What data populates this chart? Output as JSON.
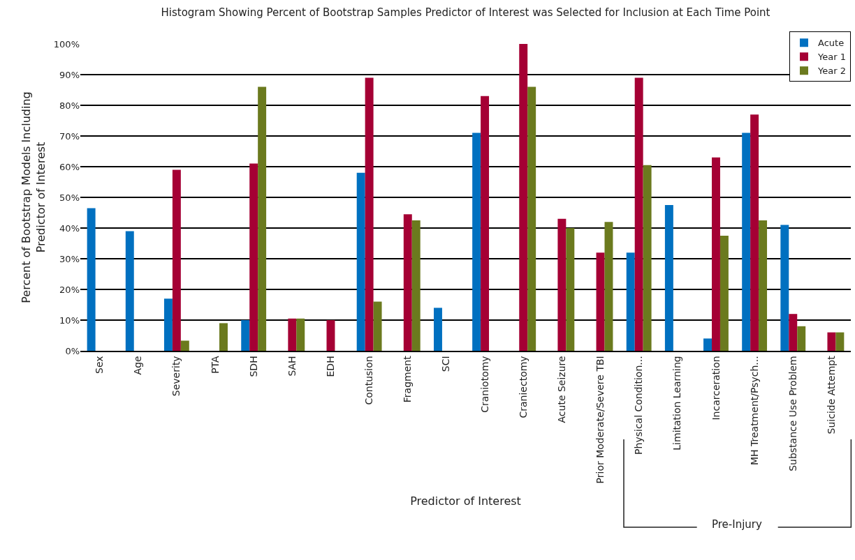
{
  "chart_data": {
    "type": "bar",
    "title": "Histogram Showing Percent of Bootstrap Samples Predictor of Interest was Selected for Inclusion at Each Time Point",
    "xlabel": "Predictor of Interest",
    "ylabel": "Percent of Bootstrap Models Including\nPredictor of Interest",
    "categories": [
      "Sex",
      "Age",
      "Severity",
      "PTA",
      "SDH",
      "SAH",
      "EDH",
      "Contusion",
      "Fragment",
      "SCI",
      "Craniotomy",
      "Craniectomy",
      "Acute Seizure",
      "Prior Moderate/Severe TBI",
      "Physical Condition...",
      "Limitation Learning",
      "Incarceration",
      "MH Treatment/Psych...",
      "Substance Use Problem",
      "Suicide Attempt"
    ],
    "series": [
      {
        "name": "Acute",
        "color": "#0070c0",
        "values": [
          46.5,
          39,
          17,
          null,
          10,
          null,
          null,
          58,
          null,
          14,
          71,
          null,
          null,
          null,
          32,
          47.5,
          4,
          71,
          41,
          null
        ]
      },
      {
        "name": "Year 1",
        "color": "#a50034",
        "values": [
          null,
          null,
          59,
          null,
          61,
          10.5,
          10,
          89,
          44.5,
          null,
          83,
          100,
          43,
          32,
          89,
          null,
          63,
          77,
          12,
          6
        ]
      },
      {
        "name": "Year 2",
        "color": "#6b7a1e",
        "values": [
          null,
          null,
          3.3,
          9,
          86,
          10.5,
          null,
          16,
          42.5,
          null,
          null,
          86,
          40,
          42,
          60.5,
          null,
          37.5,
          42.5,
          8,
          6
        ]
      }
    ],
    "ylim": [
      0,
      100
    ],
    "yticks": [
      {
        "value": 0,
        "label": "0%"
      },
      {
        "value": 10,
        "label": "10%"
      },
      {
        "value": 20,
        "label": "20%"
      },
      {
        "value": 30,
        "label": "30%"
      },
      {
        "value": 40,
        "label": "40%"
      },
      {
        "value": 50,
        "label": "50%"
      },
      {
        "value": 60,
        "label": "60%"
      },
      {
        "value": 70,
        "label": "70%"
      },
      {
        "value": 80,
        "label": "80%"
      },
      {
        "value": 90,
        "label": "90%"
      },
      {
        "value": 100,
        "label": "100%"
      }
    ],
    "grid": "y",
    "legend": "top right",
    "annotations": [
      "Pre-Injury"
    ]
  }
}
